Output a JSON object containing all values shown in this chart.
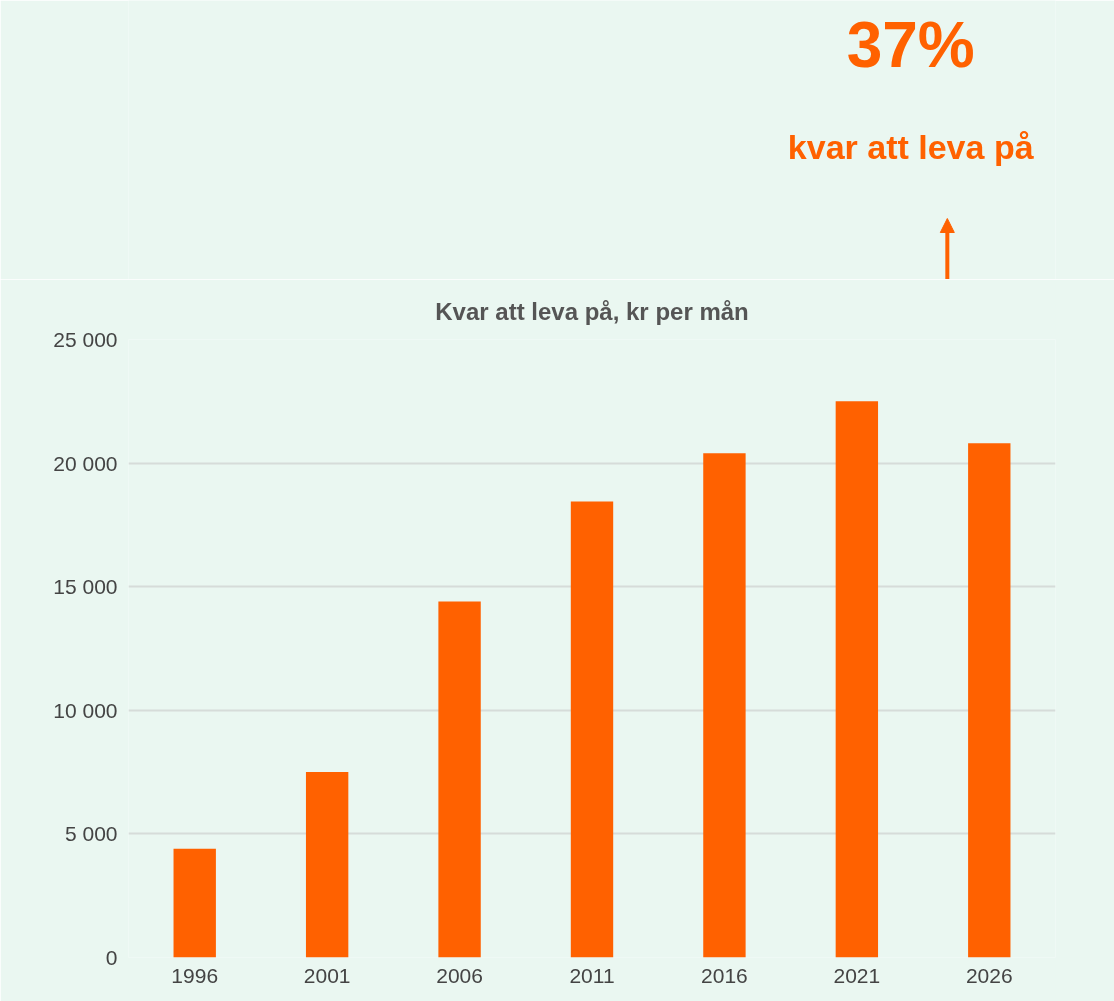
{
  "chart_data": {
    "type": "bar",
    "title": "Kvar att leva på, kr per mån",
    "categories": [
      "1996",
      "2001",
      "2006",
      "2011",
      "2016",
      "2021",
      "2026"
    ],
    "values": [
      4400,
      7500,
      14400,
      18450,
      20400,
      22500,
      20800
    ],
    "color": "#ff6100",
    "ylim": [
      0,
      25000
    ],
    "yticks": [
      0,
      {
        "value": 5000,
        "label": "5 000"
      },
      {
        "value": 10000,
        "label": "10 000"
      },
      {
        "value": 15000,
        "label": "15 000"
      },
      {
        "value": 20000,
        "label": "20 000"
      },
      {
        "value": 25000,
        "label": "25 000"
      }
    ],
    "grid": "y",
    "annotations": [
      "37%",
      "kvar att leva på"
    ]
  }
}
